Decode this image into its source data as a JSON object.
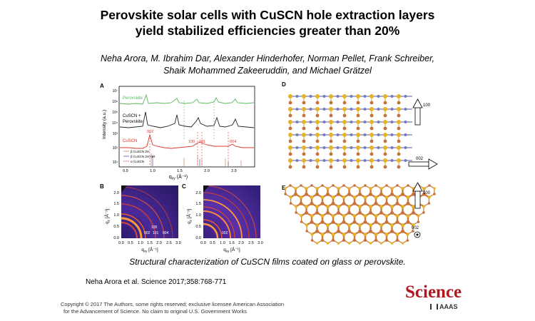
{
  "title_line1": "Perovskite solar cells with CuSCN hole extraction layers",
  "title_line2": "yield stabilized efficiencies greater than 20%",
  "authors_line1": "Neha Arora, M. Ibrahim Dar, Alexander Hinderhofer, Norman Pellet, Frank Schreiber,",
  "authors_line2": "Shaik Mohammed Zakeeruddin, and Michael Grätzel",
  "caption": "Structural characterization of CuSCN films coated on glass or perovskite.",
  "citation": "Neha Arora et al. Science 2017;358:768-771",
  "copyright_line1": "Copyright © 2017 The Authors, some rights reserved; exclusive licensee American Association",
  "copyright_line2": "for the Advancement of Science. No claim to original U.S. Government Works",
  "logo": "Science",
  "logo_sub": "AAAS",
  "panels": {
    "a": "A",
    "b": "B",
    "c": "C",
    "d": "D",
    "e": "E",
    "a_ylabel": "Intensity (a.u.)",
    "a_xlabel": "q",
    "a_xlabel_sub": "xy",
    "a_xlabel_unit": " (Å⁻¹)",
    "a_yticks": [
      "10⁷",
      "10⁶",
      "10⁵",
      "10⁴",
      "10³",
      "10²",
      "10¹"
    ],
    "a_xticks": [
      "0.5",
      "1.0",
      "1.5",
      "2.0",
      "2.5"
    ],
    "a_series": [
      "Perovskite",
      "CuSCN +",
      "Perovskite",
      "CuSCN"
    ],
    "a_peaks": [
      "002",
      "100",
      "101",
      "004"
    ],
    "a_legend": [
      "β CuSCN 2H",
      "β CuSCN 2H+3R",
      "α CuSCN"
    ],
    "bc_yticks": [
      "2.0",
      "1.5",
      "1.0",
      "0.5",
      "0.0"
    ],
    "bc_xticks": [
      "0.0",
      "0.5",
      "1.0",
      "1.5",
      "2.0",
      "2.5",
      "3.0"
    ],
    "bc_ylabel": "q",
    "bc_ylabel_sub": "z",
    "bc_ylabel_unit": " [Å⁻¹]",
    "bc_xlabel": "q",
    "bc_xlabel_sub": "xy",
    "bc_xlabel_unit": " [Å⁻¹]",
    "b_peaks": [
      "100",
      "002",
      "101",
      "004"
    ],
    "c_peaks": [
      "002"
    ],
    "d_arrow1": "100",
    "d_arrow2": "002",
    "e_arrow1": "100",
    "e_arrow2": "002"
  }
}
